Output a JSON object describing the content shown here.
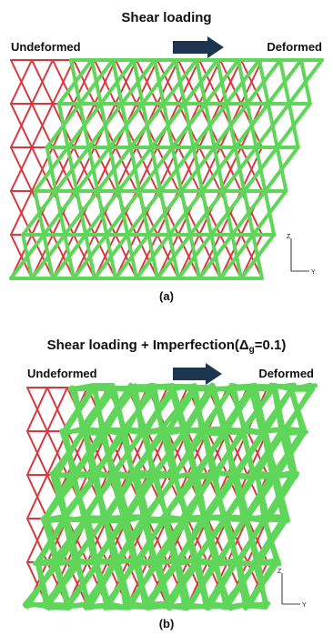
{
  "panels": [
    {
      "title": "Shear loading",
      "left_label": "Undeformed",
      "right_label": "Deformed",
      "caption": "(a)",
      "axis_z": "Z",
      "axis_y": "Y"
    },
    {
      "title": "Shear loading +  Imperfection(Δ",
      "title_sub": "g",
      "title_end": "=0.1)",
      "left_label": "Undeformed",
      "right_label": "Deformed",
      "caption": "(b)",
      "axis_z": "Z",
      "axis_y": "Y"
    }
  ]
}
